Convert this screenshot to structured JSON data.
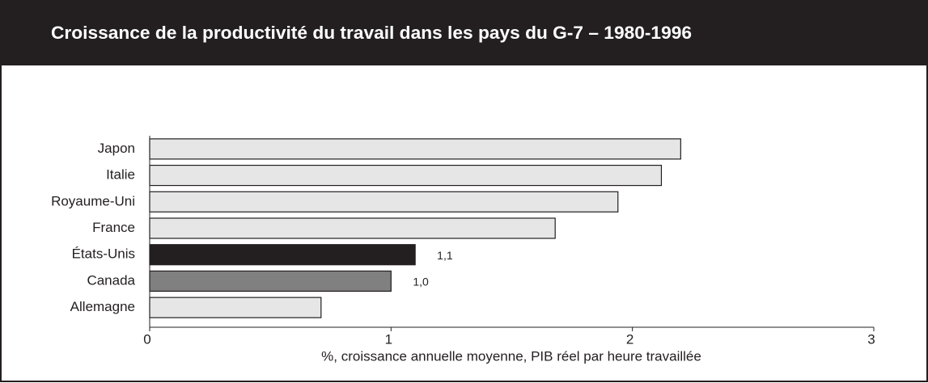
{
  "chart_data": {
    "type": "barh",
    "title": "Croissance de la productivité du travail dans les pays du G-7 – 1980-1996",
    "xlabel": "%, croissance annuelle moyenne, PIB réel par heure travaillée",
    "categories": [
      "Japon",
      "Italie",
      "Royaume-Uni",
      "France",
      "États-Unis",
      "Canada",
      "Allemagne"
    ],
    "values": [
      2.2,
      2.12,
      1.94,
      1.68,
      1.1,
      1.0,
      0.71
    ],
    "value_labels": [
      null,
      null,
      null,
      null,
      "1,1",
      "1,0",
      null
    ],
    "colors": [
      "#e6e6e6",
      "#e6e6e6",
      "#e6e6e6",
      "#e6e6e6",
      "#231f20",
      "#808080",
      "#e6e6e6"
    ],
    "xlim": [
      0,
      3
    ],
    "xticks": [
      0,
      1,
      2,
      3
    ]
  }
}
